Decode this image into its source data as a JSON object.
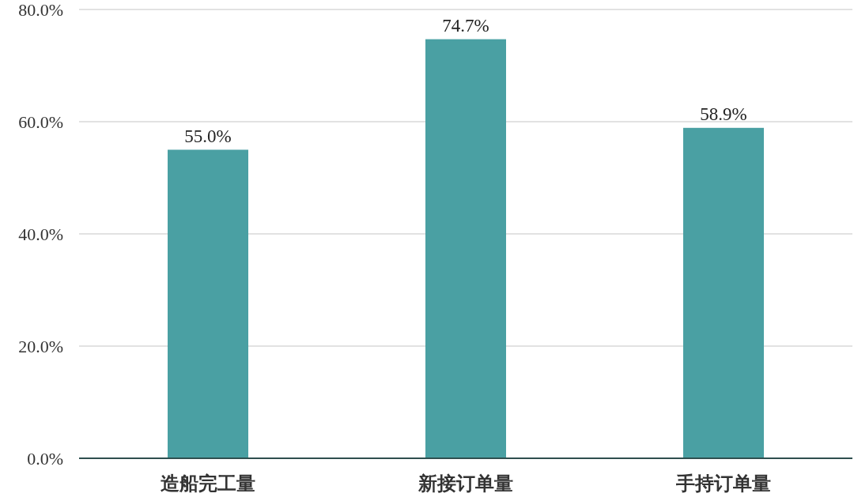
{
  "chart_data": {
    "type": "bar",
    "categories": [
      "造船完工量",
      "新接订单量",
      "手持订单量"
    ],
    "values": [
      55.0,
      74.7,
      58.9
    ],
    "value_labels": [
      "55.0%",
      "74.7%",
      "58.9%"
    ],
    "colors": [
      "#4aa0a3",
      "#4aa0a3",
      "#4aa0a3"
    ],
    "ylim": [
      0,
      80
    ],
    "yticks": [
      {
        "value": 0,
        "label": "0.0%"
      },
      {
        "value": 20,
        "label": "20.0%"
      },
      {
        "value": 40,
        "label": "40.0%"
      },
      {
        "value": 60,
        "label": "60.0%"
      },
      {
        "value": 80,
        "label": "80.0%"
      }
    ],
    "grid": "y"
  }
}
